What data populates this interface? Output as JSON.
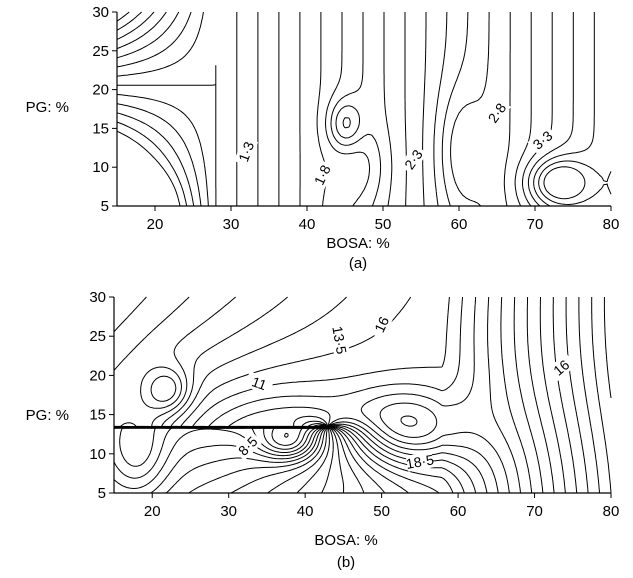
{
  "chart_data": [
    {
      "type": "contour",
      "panel_label": "(a)",
      "xlabel": "BOSA: %",
      "ylabel": "PG: %",
      "xlim": [
        15,
        80
      ],
      "ylim": [
        5,
        30
      ],
      "x_ticks": [
        20,
        30,
        40,
        50,
        60,
        70,
        80
      ],
      "y_ticks": [
        5,
        10,
        15,
        20,
        25,
        30
      ],
      "levels": [
        {
          "text": "1·3",
          "value": 1.3,
          "x": 32,
          "y": 12,
          "angle": -70
        },
        {
          "text": "1·8",
          "value": 1.8,
          "x": 42,
          "y": 9,
          "angle": -65
        },
        {
          "text": "2·3",
          "value": 2.3,
          "x": 54,
          "y": 11,
          "angle": -55
        },
        {
          "text": "2·8",
          "value": 2.8,
          "x": 65,
          "y": 17,
          "angle": -55
        },
        {
          "text": "3·3",
          "value": 3.3,
          "x": 71,
          "y": 13.5,
          "angle": -40
        }
      ]
    },
    {
      "type": "contour",
      "panel_label": "(b)",
      "xlabel": "BOSA: %",
      "ylabel": "PG: %",
      "xlim": [
        15,
        80
      ],
      "ylim": [
        5,
        30
      ],
      "x_ticks": [
        20,
        30,
        40,
        50,
        60,
        70,
        80
      ],
      "y_ticks": [
        5,
        10,
        15,
        20,
        25,
        30
      ],
      "levels": [
        {
          "text": "8·5",
          "value": 8.5,
          "x": 32.5,
          "y": 11,
          "angle": -45
        },
        {
          "text": "11",
          "value": 11,
          "x": 34,
          "y": 19,
          "angle": 20
        },
        {
          "text": "13·5",
          "value": 13.5,
          "x": 44.5,
          "y": 24.5,
          "angle": 80
        },
        {
          "text": "16",
          "value": 16,
          "x": 50,
          "y": 26.5,
          "angle": -65
        },
        {
          "text": "18·5",
          "value": 18.5,
          "x": 55,
          "y": 9,
          "angle": -10
        },
        {
          "text": "16",
          "value": 16,
          "x": 73.5,
          "y": 21,
          "angle": -40
        }
      ]
    }
  ]
}
